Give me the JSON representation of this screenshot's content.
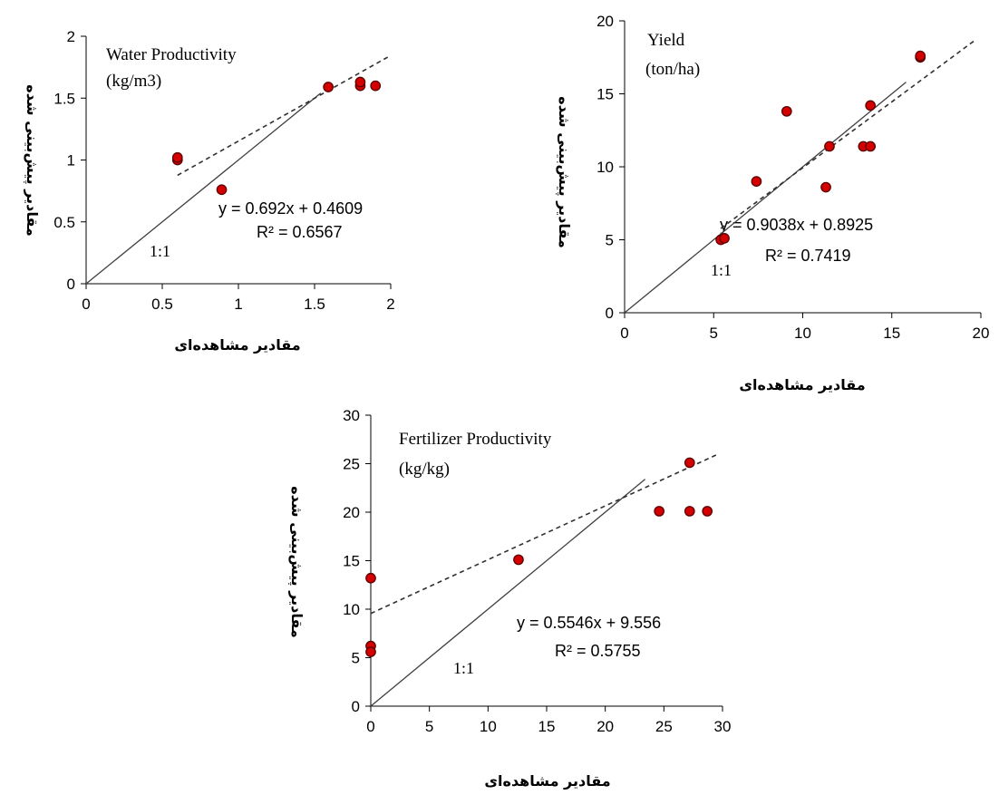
{
  "chart_data": [
    {
      "type": "scatter",
      "title": "Water Productivity",
      "subtitle": "(kg/m3)",
      "xlabel": "مقادیر مشاهده‌ای",
      "ylabel": "مقادیر پیش‌بینی شده",
      "xlim": [
        0,
        2
      ],
      "ylim": [
        0,
        2
      ],
      "xticks": [
        "0",
        "0.5",
        "1",
        "1.5",
        "2"
      ],
      "yticks": [
        "0",
        "0.5",
        "1",
        "1.5",
        "2"
      ],
      "points": [
        [
          0.6,
          1.0
        ],
        [
          0.6,
          1.02
        ],
        [
          0.89,
          0.76
        ],
        [
          1.59,
          1.59
        ],
        [
          1.8,
          1.6
        ],
        [
          1.8,
          1.63
        ],
        [
          1.9,
          1.6
        ]
      ],
      "trendline": {
        "slope": 0.692,
        "intercept": 0.4609,
        "x_range": [
          0.6,
          2.0
        ],
        "style": "dashed"
      },
      "equation": "y = 0.692x + 0.4609",
      "r2": "R² = 0.6567",
      "identity_label": "1:1",
      "identity_x_end": 1.54,
      "grid": false
    },
    {
      "type": "scatter",
      "title": "Yield",
      "subtitle": "(ton/ha)",
      "xlabel": "مقادیر مشاهده‌ای",
      "ylabel": "مقادیر پیش‌بینی شده",
      "xlim": [
        0,
        20
      ],
      "ylim": [
        0,
        20
      ],
      "xticks": [
        "0",
        "5",
        "10",
        "15",
        "20"
      ],
      "yticks": [
        "0",
        "5",
        "10",
        "15",
        "20"
      ],
      "points": [
        [
          5.4,
          5.0
        ],
        [
          5.6,
          5.1
        ],
        [
          7.4,
          9.0
        ],
        [
          9.1,
          13.8
        ],
        [
          11.3,
          8.6
        ],
        [
          11.5,
          11.4
        ],
        [
          13.4,
          11.4
        ],
        [
          13.8,
          11.4
        ],
        [
          13.8,
          14.2
        ],
        [
          16.6,
          17.5
        ],
        [
          16.6,
          17.6
        ]
      ],
      "trendline": {
        "slope": 0.9038,
        "intercept": 0.8925,
        "x_range": [
          5.4,
          19.6
        ],
        "style": "dashed"
      },
      "equation": "y = 0.9038x + 0.8925",
      "r2": "R² = 0.7419",
      "identity_label": "1:1",
      "identity_x_end": 15.8,
      "grid": false
    },
    {
      "type": "scatter",
      "title": "Fertilizer  Productivity",
      "subtitle": "(kg/kg)",
      "xlabel": "مقادیر مشاهده‌ای",
      "ylabel": "مقادیر پیش‌بینی شده",
      "xlim": [
        0,
        30
      ],
      "ylim": [
        0,
        30
      ],
      "xticks": [
        "0",
        "5",
        "10",
        "15",
        "20",
        "25",
        "30"
      ],
      "yticks": [
        "0",
        "5",
        "10",
        "15",
        "20",
        "25",
        "30"
      ],
      "points": [
        [
          0,
          13.2
        ],
        [
          0,
          6.2
        ],
        [
          0,
          5.6
        ],
        [
          12.6,
          15.1
        ],
        [
          24.6,
          20.1
        ],
        [
          27.2,
          20.1
        ],
        [
          28.7,
          20.1
        ],
        [
          27.2,
          25.1
        ]
      ],
      "trendline": {
        "slope": 0.5546,
        "intercept": 9.556,
        "x_range": [
          0,
          29.6
        ],
        "style": "dashed"
      },
      "equation": "y = 0.5546x + 9.556",
      "r2": "R² = 0.5755",
      "identity_label": "1:1",
      "identity_x_end": 23.4,
      "grid": false
    }
  ],
  "colors": {
    "marker_fill": "#d40000",
    "marker_stroke": "#5a0000",
    "axis": "#000000",
    "identity_line": "#404040",
    "trend_line": "#303030"
  }
}
